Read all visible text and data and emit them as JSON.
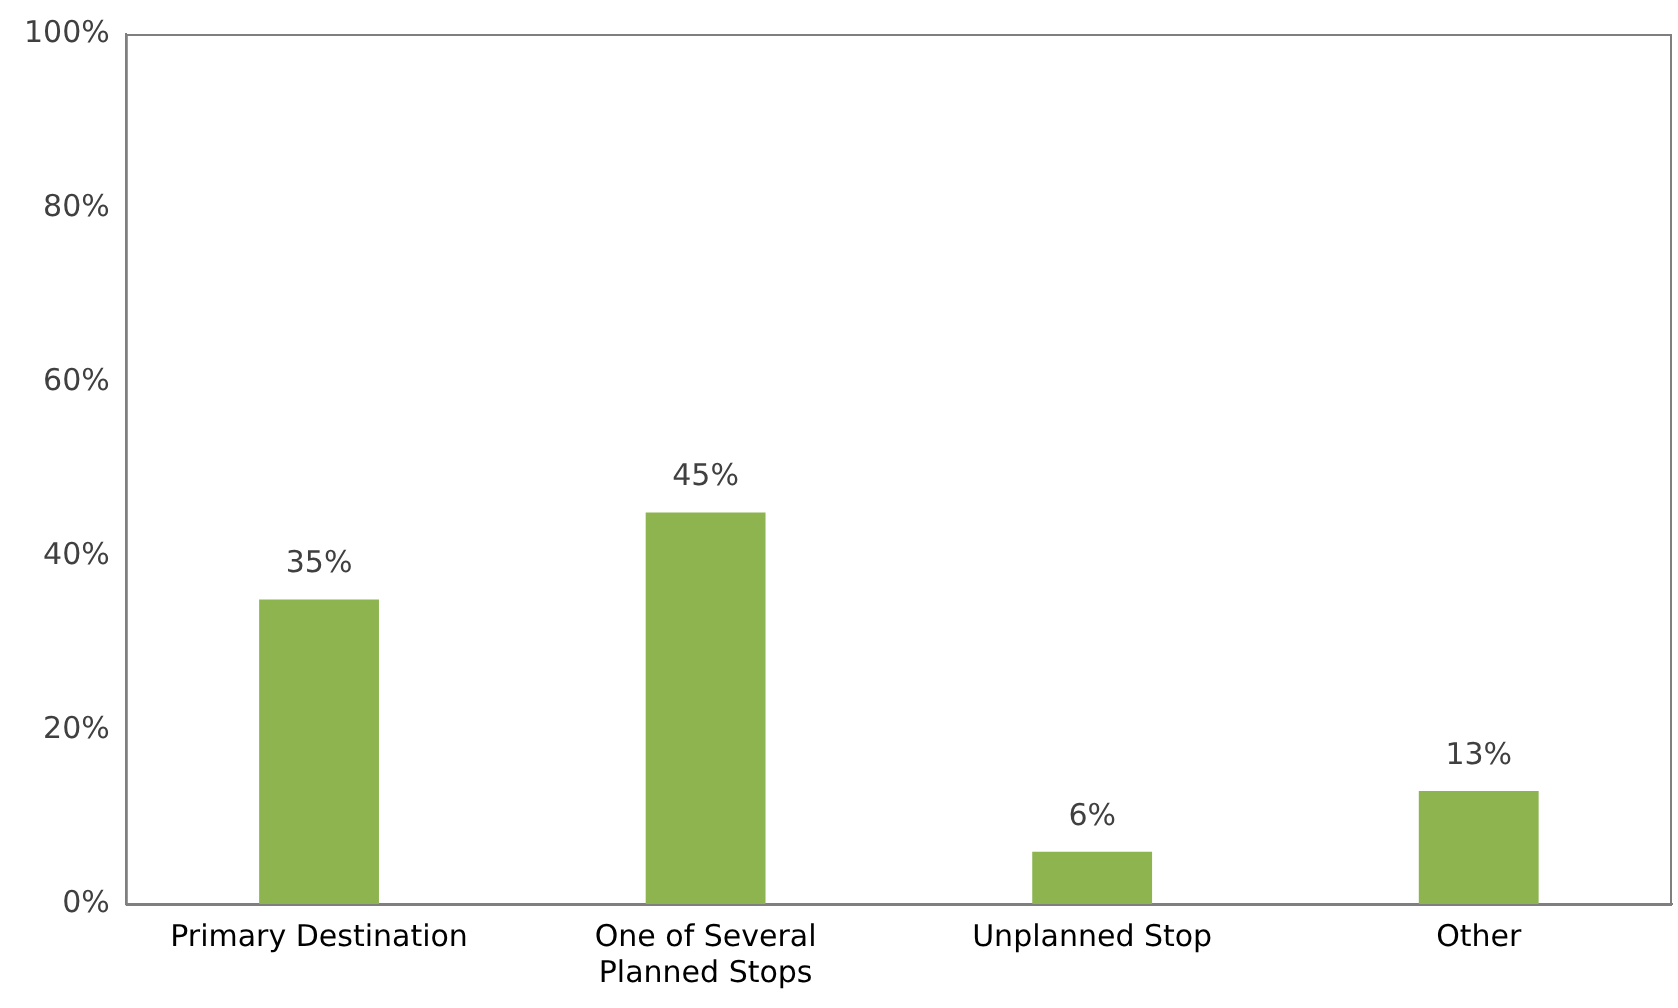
{
  "chart_data": {
    "type": "bar",
    "categories": [
      "Primary Destination",
      "One of Several Planned Stops",
      "Unplanned Stop",
      "Other"
    ],
    "values": [
      35,
      45,
      6,
      13
    ],
    "value_labels": [
      "35%",
      "45%",
      "6%",
      "13%"
    ],
    "color": "#8db44e",
    "ylim": [
      0,
      100
    ],
    "yticks": [
      {
        "value": 0,
        "label": "0%"
      },
      {
        "value": 20,
        "label": "20%"
      },
      {
        "value": 40,
        "label": "40%"
      },
      {
        "value": 60,
        "label": "60%"
      },
      {
        "value": 80,
        "label": "80%"
      },
      {
        "value": 100,
        "label": "100%"
      }
    ],
    "grid": false
  }
}
